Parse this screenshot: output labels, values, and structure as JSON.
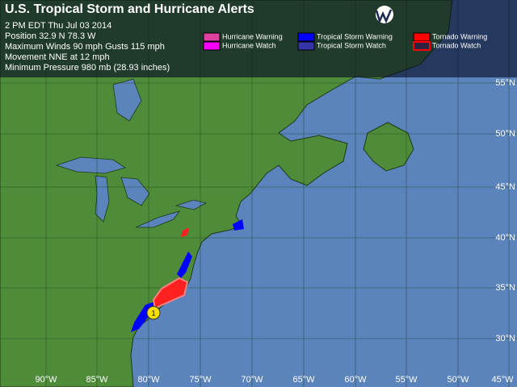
{
  "header": {
    "title": "U.S. Tropical Storm and Hurricane Alerts",
    "info": [
      "2 PM EDT Thu Jul 03 2014",
      "Position 32.9 N 78.3 W",
      "Maximum Winds  90 mph  Gusts  115 mph",
      "Movement NNE at 12 mph",
      "Minimum Pressure 980 mb (28.93 inches)"
    ]
  },
  "legend": [
    "Hurricane Warning",
    "Hurricane Watch",
    "Tropical Storm Warning",
    "Tropical Storm Watch",
    "Tornado Warning",
    "Tornado Watch"
  ],
  "latitude_labels": [
    "55°N",
    "50°N",
    "45°N",
    "40°N",
    "35°N",
    "30°N"
  ],
  "longitude_labels": [
    "90°W",
    "85°W",
    "80°W",
    "75°W",
    "70°W",
    "65°W",
    "60°W",
    "55°W",
    "50°W",
    "45°W"
  ],
  "storm": {
    "label": "1"
  }
}
